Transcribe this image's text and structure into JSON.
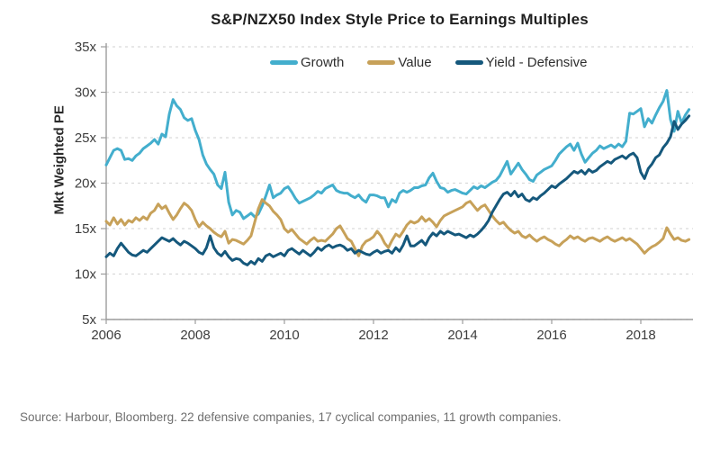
{
  "source_note": "Source: Harbour, Bloomberg. 22 defensive companies, 17 cyclical companies, 11 growth companies.",
  "chart_data": {
    "type": "line",
    "title": "S&P/NZX50 Index Style Price to Earnings Multiples",
    "ylabel": "Mkt Weighted PE",
    "xlabel": "",
    "ylim": [
      5,
      35
    ],
    "y_ticks": [
      5,
      10,
      15,
      20,
      25,
      30,
      35
    ],
    "y_tick_labels": [
      "5x",
      "10x",
      "15x",
      "20x",
      "25x",
      "30x",
      "35x"
    ],
    "x_ticks": [
      2006,
      2008,
      2010,
      2012,
      2014,
      2016,
      2018
    ],
    "x_tick_labels": [
      "2006",
      "2008",
      "2010",
      "2012",
      "2014",
      "2016",
      "2018"
    ],
    "xlim": [
      2006,
      2019.17
    ],
    "grid": "horizontal-dashed",
    "legend_position": "top",
    "x_start_year": 2006,
    "points_per_year": 12,
    "colors": {
      "grid": "#d9d9d9",
      "axis": "#9c9c9c",
      "tick_text": "#3d3d3d"
    },
    "series": [
      {
        "name": "Growth",
        "color": "#43aecd",
        "values": [
          22.0,
          22.8,
          23.6,
          23.8,
          23.6,
          22.6,
          22.7,
          22.5,
          23.0,
          23.3,
          23.8,
          24.1,
          24.4,
          24.8,
          24.3,
          25.4,
          25.1,
          27.6,
          29.2,
          28.5,
          28.1,
          27.2,
          26.9,
          27.1,
          25.8,
          24.8,
          23.1,
          22.1,
          21.5,
          21.0,
          19.8,
          19.4,
          21.2,
          17.9,
          16.5,
          17.0,
          16.8,
          16.1,
          16.4,
          16.7,
          16.3,
          16.6,
          17.5,
          18.6,
          19.8,
          18.4,
          18.7,
          18.9,
          19.4,
          19.6,
          19.0,
          18.3,
          17.8,
          18.0,
          18.2,
          18.4,
          18.7,
          19.1,
          18.9,
          19.4,
          19.6,
          19.8,
          19.2,
          19.0,
          18.9,
          18.9,
          18.6,
          18.4,
          18.7,
          18.2,
          17.9,
          18.7,
          18.7,
          18.6,
          18.4,
          18.4,
          17.4,
          18.2,
          17.9,
          18.9,
          19.2,
          19.0,
          19.2,
          19.5,
          19.5,
          19.7,
          19.8,
          20.6,
          21.1,
          20.2,
          19.5,
          19.4,
          19.0,
          19.2,
          19.3,
          19.1,
          18.9,
          18.8,
          19.2,
          19.6,
          19.4,
          19.7,
          19.5,
          19.8,
          20.1,
          20.3,
          20.8,
          21.6,
          22.4,
          21.0,
          21.6,
          22.2,
          21.5,
          21.0,
          20.4,
          20.2,
          20.9,
          21.2,
          21.5,
          21.7,
          21.9,
          22.5,
          23.2,
          23.6,
          24.0,
          24.3,
          23.6,
          24.4,
          23.2,
          22.3,
          22.8,
          23.3,
          23.6,
          24.1,
          23.8,
          24.0,
          24.2,
          23.9,
          24.3,
          24.0,
          24.6,
          27.7,
          27.6,
          27.9,
          28.2,
          26.2,
          27.1,
          26.6,
          27.5,
          28.3,
          29.0,
          30.2,
          27.0,
          25.7,
          27.9,
          26.6,
          27.5,
          28.1
        ]
      },
      {
        "name": "Value",
        "color": "#c7a159",
        "values": [
          15.8,
          15.4,
          16.2,
          15.5,
          16.0,
          15.4,
          15.9,
          15.7,
          16.2,
          15.9,
          16.3,
          16.0,
          16.7,
          17.0,
          17.7,
          17.2,
          17.5,
          16.7,
          16.0,
          16.5,
          17.2,
          17.8,
          17.5,
          17.0,
          16.0,
          15.2,
          15.7,
          15.3,
          15.0,
          14.6,
          14.3,
          14.1,
          14.7,
          13.4,
          13.8,
          13.7,
          13.5,
          13.3,
          13.7,
          14.2,
          15.7,
          17.2,
          18.2,
          17.8,
          17.5,
          16.9,
          16.5,
          16.0,
          15.0,
          14.6,
          14.9,
          14.4,
          13.9,
          13.6,
          13.3,
          13.7,
          14.0,
          13.6,
          13.7,
          13.6,
          14.0,
          14.4,
          15.0,
          15.3,
          14.6,
          13.9,
          13.6,
          12.8,
          12.0,
          13.1,
          13.6,
          13.8,
          14.1,
          14.7,
          14.2,
          13.4,
          12.9,
          13.7,
          14.4,
          14.1,
          14.7,
          15.4,
          15.8,
          15.6,
          15.8,
          16.3,
          15.8,
          16.1,
          15.7,
          15.2,
          15.9,
          16.4,
          16.6,
          16.8,
          17.0,
          17.2,
          17.4,
          17.8,
          18.0,
          17.5,
          17.0,
          17.4,
          17.6,
          17.0,
          16.4,
          15.9,
          15.5,
          15.7,
          15.2,
          14.8,
          14.5,
          14.7,
          14.2,
          14.0,
          14.3,
          13.9,
          13.6,
          13.9,
          14.1,
          13.8,
          13.6,
          13.3,
          13.1,
          13.5,
          13.8,
          14.2,
          13.9,
          14.1,
          13.8,
          13.6,
          13.9,
          14.0,
          13.8,
          13.6,
          13.9,
          14.1,
          13.8,
          13.6,
          13.8,
          14.0,
          13.7,
          13.9,
          13.6,
          13.3,
          12.8,
          12.3,
          12.7,
          13.0,
          13.2,
          13.5,
          13.9,
          15.1,
          14.4,
          13.8,
          14.0,
          13.7,
          13.6,
          13.8
        ]
      },
      {
        "name": "Yield - Defensive",
        "color": "#15587c",
        "values": [
          11.9,
          12.3,
          12.0,
          12.8,
          13.4,
          12.9,
          12.4,
          12.1,
          12.0,
          12.3,
          12.6,
          12.4,
          12.8,
          13.2,
          13.6,
          14.0,
          13.8,
          13.6,
          13.9,
          13.5,
          13.2,
          13.6,
          13.4,
          13.1,
          12.8,
          12.4,
          12.2,
          12.9,
          14.2,
          12.9,
          12.3,
          12.0,
          12.5,
          11.9,
          11.5,
          11.7,
          11.6,
          11.2,
          11.0,
          11.4,
          11.1,
          11.7,
          11.4,
          12.0,
          12.2,
          11.9,
          12.1,
          12.3,
          12.0,
          12.6,
          12.8,
          12.5,
          12.2,
          12.6,
          12.3,
          12.0,
          12.4,
          12.9,
          12.6,
          13.0,
          13.2,
          12.9,
          13.1,
          13.2,
          13.0,
          12.6,
          12.8,
          12.3,
          12.6,
          12.4,
          12.2,
          12.1,
          12.4,
          12.6,
          12.3,
          12.5,
          12.6,
          12.3,
          12.9,
          12.5,
          13.2,
          14.2,
          13.1,
          13.1,
          13.4,
          13.7,
          13.2,
          14.0,
          14.5,
          14.2,
          14.7,
          14.4,
          14.7,
          14.5,
          14.3,
          14.4,
          14.2,
          14.0,
          14.3,
          14.1,
          14.4,
          14.8,
          15.3,
          15.9,
          16.8,
          17.5,
          18.2,
          18.8,
          19.0,
          18.6,
          19.1,
          18.5,
          18.8,
          18.2,
          18.0,
          18.4,
          18.2,
          18.6,
          18.9,
          19.3,
          19.7,
          19.5,
          19.9,
          20.2,
          20.5,
          20.9,
          21.3,
          21.1,
          21.4,
          21.0,
          21.5,
          21.2,
          21.4,
          21.8,
          22.1,
          22.4,
          22.2,
          22.6,
          22.8,
          23.0,
          22.7,
          23.1,
          23.3,
          22.8,
          21.2,
          20.5,
          21.6,
          22.1,
          22.8,
          23.1,
          23.9,
          24.4,
          25.1,
          26.8,
          25.9,
          26.5,
          26.9,
          27.4
        ]
      }
    ]
  }
}
